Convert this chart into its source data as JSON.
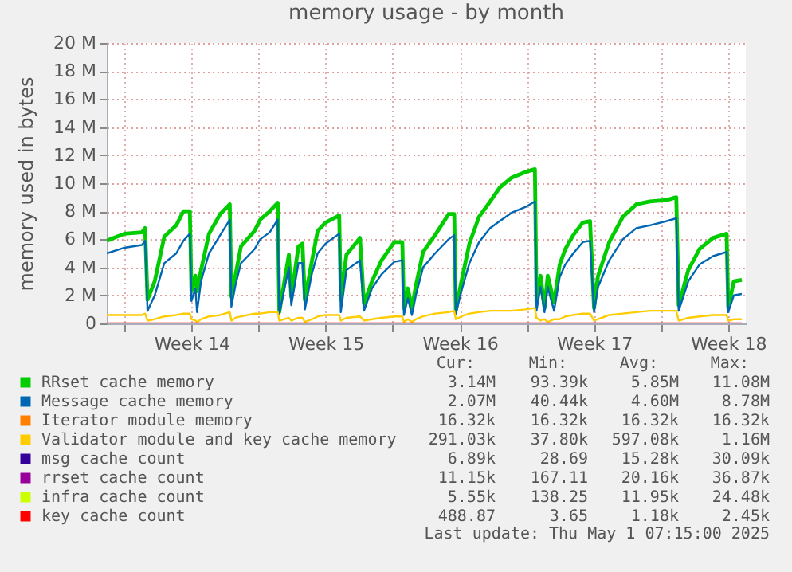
{
  "chart_data": {
    "type": "line",
    "title": "memory usage - by month",
    "ylabel": "memory used in bytes",
    "x": [
      "2025-03-30T02:00",
      "2025-03-31T00:00",
      "2025-03-31T22:00",
      "2025-04-01T02:00",
      "2025-04-01T05:00",
      "2025-04-01T14:00",
      "2025-04-02T02:00",
      "2025-04-02T17:00",
      "2025-04-03T02:00",
      "2025-04-03T10:00",
      "2025-04-03T12:00",
      "2025-04-03T17:00",
      "2025-04-03T19:00",
      "2025-04-04T00:00",
      "2025-04-04T10:00",
      "2025-04-05T00:00",
      "2025-04-05T12:00",
      "2025-04-05T14:00",
      "2025-04-05T19:00",
      "2025-04-06T02:00",
      "2025-04-06T19:00",
      "2025-04-07T02:00",
      "2025-04-07T14:00",
      "2025-04-08T00:00",
      "2025-04-08T02:00",
      "2025-04-08T14:00",
      "2025-04-08T17:00",
      "2025-04-09T02:00",
      "2025-04-09T07:00",
      "2025-04-09T10:00",
      "2025-04-09T19:00",
      "2025-04-10T02:00",
      "2025-04-10T12:00",
      "2025-04-11T05:00",
      "2025-04-11T07:00",
      "2025-04-11T14:00",
      "2025-04-12T07:00",
      "2025-04-12T12:00",
      "2025-04-12T22:00",
      "2025-04-13T10:00",
      "2025-04-14T02:00",
      "2025-04-14T12:00",
      "2025-04-14T14:00",
      "2025-04-14T19:00",
      "2025-04-15T00:00",
      "2025-04-15T05:00",
      "2025-04-15T14:00",
      "2025-04-16T05:00",
      "2025-04-16T22:00",
      "2025-04-17T05:00",
      "2025-04-17T07:00",
      "2025-04-17T14:00",
      "2025-04-18T00:00",
      "2025-04-18T12:00",
      "2025-04-19T02:00",
      "2025-04-19T14:00",
      "2025-04-20T05:00",
      "2025-04-20T22:00",
      "2025-04-21T10:00",
      "2025-04-21T12:00",
      "2025-04-21T17:00",
      "2025-04-21T22:00",
      "2025-04-22T02:00",
      "2025-04-22T10:00",
      "2025-04-22T17:00",
      "2025-04-23T00:00",
      "2025-04-23T10:00",
      "2025-04-23T22:00",
      "2025-04-24T07:00",
      "2025-04-24T12:00",
      "2025-04-24T17:00",
      "2025-04-25T07:00",
      "2025-04-26T00:00",
      "2025-04-26T17:00",
      "2025-04-27T10:00",
      "2025-04-28T07:00",
      "2025-04-28T19:00",
      "2025-04-28T22:00",
      "2025-04-29T10:00",
      "2025-04-30T00:00",
      "2025-04-30T17:00",
      "2025-05-01T10:00",
      "2025-05-01T12:00",
      "2025-05-01T19:00",
      "2025-05-02T05:00"
    ],
    "series": [
      {
        "name": "RRset cache memory",
        "color": "#00cc00",
        "values": [
          5.9,
          6.4,
          6.5,
          6.8,
          1.7,
          3.0,
          6.2,
          7.0,
          8.0,
          8.0,
          2.3,
          3.4,
          2.3,
          3.8,
          6.4,
          7.8,
          8.5,
          1.9,
          3.4,
          5.5,
          6.6,
          7.4,
          8.0,
          8.6,
          0.8,
          4.9,
          1.9,
          5.5,
          5.7,
          1.7,
          4.5,
          6.6,
          7.2,
          7.7,
          1.7,
          4.9,
          6.1,
          1.4,
          3.0,
          4.5,
          5.8,
          5.8,
          1.1,
          2.5,
          1.1,
          2.7,
          5.1,
          6.3,
          7.8,
          7.8,
          0.9,
          3.0,
          5.7,
          7.6,
          8.7,
          9.7,
          10.4,
          10.8,
          11.0,
          1.5,
          3.4,
          1.1,
          3.4,
          1.5,
          4.2,
          5.3,
          6.3,
          7.2,
          7.3,
          1.1,
          3.4,
          5.8,
          7.6,
          8.5,
          8.7,
          8.8,
          9.0,
          1.3,
          3.8,
          5.3,
          6.1,
          6.4,
          1.1,
          3.0,
          3.1
        ]
      },
      {
        "name": "Message cache memory",
        "color": "#0066b3",
        "values": [
          5.0,
          5.4,
          5.6,
          5.9,
          0.9,
          2.0,
          4.3,
          5.0,
          5.9,
          6.4,
          1.6,
          2.5,
          0.8,
          3.0,
          5.0,
          6.3,
          7.4,
          1.2,
          2.7,
          4.3,
          5.3,
          6.0,
          6.5,
          7.4,
          0.7,
          4.0,
          1.3,
          4.3,
          4.3,
          1.0,
          3.6,
          5.0,
          5.7,
          6.4,
          0.8,
          3.8,
          4.5,
          0.9,
          2.5,
          3.5,
          4.4,
          4.5,
          0.6,
          1.8,
          0.6,
          2.0,
          4.0,
          5.0,
          6.0,
          6.3,
          0.7,
          2.3,
          4.3,
          5.8,
          6.8,
          7.3,
          7.9,
          8.3,
          8.7,
          0.9,
          2.6,
          0.8,
          2.6,
          0.9,
          3.3,
          4.2,
          5.0,
          5.8,
          5.9,
          0.8,
          2.6,
          4.5,
          6.0,
          6.8,
          7.0,
          7.3,
          7.5,
          0.9,
          3.0,
          4.2,
          4.8,
          5.1,
          0.8,
          2.0,
          2.1
        ]
      },
      {
        "name": "Iterator module memory",
        "color": "#ff8000",
        "values": [
          null,
          null,
          null,
          null,
          null,
          null,
          null,
          null,
          null,
          null,
          null,
          null,
          null,
          null,
          null,
          null,
          null,
          null,
          null,
          null,
          null,
          null,
          null,
          null,
          null,
          null,
          null,
          null,
          null,
          null,
          null,
          null,
          null,
          null,
          null,
          null,
          null,
          null,
          null,
          null,
          null,
          null,
          null,
          null,
          null,
          null,
          null,
          null,
          null,
          null,
          null,
          null,
          null,
          null,
          null,
          null,
          null,
          null,
          null,
          null,
          null,
          null,
          null,
          null,
          null,
          null,
          null,
          null,
          null,
          null,
          null,
          null,
          null,
          null,
          null,
          null,
          null,
          null,
          null,
          null,
          null,
          null,
          null,
          null,
          null
        ]
      },
      {
        "name": "Validator module and key cache memory",
        "color": "#ffcc00",
        "values": [
          0.6,
          0.6,
          0.6,
          0.7,
          0.2,
          0.3,
          0.5,
          0.6,
          0.7,
          0.7,
          0.3,
          0.2,
          0.1,
          0.3,
          0.5,
          0.6,
          0.8,
          0.2,
          0.4,
          0.5,
          0.7,
          0.7,
          0.8,
          0.8,
          0.2,
          0.4,
          0.2,
          0.4,
          0.4,
          0.1,
          0.3,
          0.5,
          0.6,
          0.6,
          0.2,
          0.4,
          0.5,
          0.2,
          0.3,
          0.4,
          0.5,
          0.5,
          0.1,
          0.3,
          0.1,
          0.3,
          0.5,
          0.7,
          0.8,
          0.9,
          0.3,
          0.5,
          0.7,
          0.8,
          0.9,
          0.9,
          0.9,
          1.0,
          1.1,
          0.4,
          0.2,
          0.3,
          0.1,
          0.3,
          0.3,
          0.5,
          0.6,
          0.7,
          0.7,
          0.2,
          0.3,
          0.6,
          0.7,
          0.8,
          0.9,
          0.9,
          0.9,
          0.2,
          0.4,
          0.5,
          0.6,
          0.6,
          0.2,
          0.3,
          0.3
        ]
      },
      {
        "name": "msg cache count",
        "color": "#330099",
        "values": [
          null,
          null,
          null,
          null,
          null,
          null,
          null,
          null,
          null,
          null,
          null,
          null,
          null,
          null,
          null,
          null,
          null,
          null,
          null,
          null,
          null,
          null,
          null,
          null,
          null,
          null,
          null,
          null,
          null,
          null,
          null,
          null,
          null,
          null,
          null,
          null,
          null,
          null,
          null,
          null,
          null,
          null,
          null,
          null,
          null,
          null,
          null,
          null,
          null,
          null,
          null,
          null,
          null,
          null,
          null,
          null,
          null,
          null,
          null,
          null,
          null,
          null,
          null,
          null,
          null,
          null,
          null,
          null,
          null,
          null,
          null,
          null,
          null,
          null,
          null,
          null,
          null,
          null,
          null,
          null,
          null,
          null,
          null,
          null,
          null
        ]
      },
      {
        "name": "rrset cache count",
        "color": "#990099",
        "values": [
          null,
          null,
          null,
          null,
          null,
          null,
          null,
          null,
          null,
          null,
          null,
          null,
          null,
          null,
          null,
          null,
          null,
          null,
          null,
          null,
          null,
          null,
          null,
          null,
          null,
          null,
          null,
          null,
          null,
          null,
          null,
          null,
          null,
          null,
          null,
          null,
          null,
          null,
          null,
          null,
          null,
          null,
          null,
          null,
          null,
          null,
          null,
          null,
          null,
          null,
          null,
          null,
          null,
          null,
          null,
          null,
          null,
          null,
          null,
          null,
          null,
          null,
          null,
          null,
          null,
          null,
          null,
          null,
          null,
          null,
          null,
          null,
          null,
          null,
          null,
          null,
          null,
          null,
          null,
          null,
          null,
          null,
          null,
          null,
          null
        ]
      },
      {
        "name": "infra cache count",
        "color": "#ccff00",
        "values": [
          null,
          null,
          null,
          null,
          null,
          null,
          null,
          null,
          null,
          null,
          null,
          null,
          null,
          null,
          null,
          null,
          null,
          null,
          null,
          null,
          null,
          null,
          null,
          null,
          null,
          null,
          null,
          null,
          null,
          null,
          null,
          null,
          null,
          null,
          null,
          null,
          null,
          null,
          null,
          null,
          null,
          null,
          null,
          null,
          null,
          null,
          null,
          null,
          null,
          null,
          null,
          null,
          null,
          null,
          null,
          null,
          null,
          null,
          null,
          null,
          null,
          null,
          null,
          null,
          null,
          null,
          null,
          null,
          null,
          null,
          null,
          null,
          null,
          null,
          null,
          null,
          null,
          null,
          null,
          null,
          null,
          null,
          null,
          null,
          null
        ]
      },
      {
        "name": "key cache count",
        "color": "#ff0000",
        "values": [
          0,
          0,
          0,
          0,
          0,
          0,
          0,
          0,
          0,
          0,
          0,
          0,
          0,
          0,
          0,
          0,
          0,
          0,
          0,
          0,
          0,
          0,
          0,
          0,
          0,
          0,
          0,
          0,
          0,
          0,
          0,
          0,
          0,
          0,
          0,
          0,
          0,
          0,
          0,
          0,
          0,
          0,
          0,
          0,
          0,
          0,
          0,
          0,
          0,
          0,
          0,
          0,
          0,
          0,
          0,
          0,
          0,
          0,
          0,
          0,
          0,
          0,
          0,
          0,
          0,
          0,
          0,
          0,
          0,
          0,
          0,
          0,
          0,
          0,
          0,
          0,
          0,
          0,
          0,
          0,
          0,
          0,
          0,
          0,
          0
        ]
      }
    ],
    "xlim": [
      "2025-03-30T02:00",
      "2025-05-02T10:00"
    ],
    "xticks": [
      {
        "value": "2025-03-31T00:00",
        "label": null
      },
      {
        "value": "2025-04-03T12:00",
        "label": "Week 14"
      },
      {
        "value": "2025-04-07T00:00",
        "label": null
      },
      {
        "value": "2025-04-10T12:00",
        "label": "Week 15"
      },
      {
        "value": "2025-04-14T00:00",
        "label": null
      },
      {
        "value": "2025-04-17T12:00",
        "label": "Week 16"
      },
      {
        "value": "2025-04-21T00:00",
        "label": null
      },
      {
        "value": "2025-04-24T12:00",
        "label": "Week 17"
      },
      {
        "value": "2025-04-28T00:00",
        "label": null
      },
      {
        "value": "2025-05-01T12:00",
        "label": "Week 18"
      }
    ],
    "ylim": [
      0,
      20
    ],
    "yticks": [
      0,
      {
        "value": 2,
        "label": "2 M"
      },
      {
        "value": 4,
        "label": "4 M"
      },
      {
        "value": 6,
        "label": "6 M"
      },
      {
        "value": 8,
        "label": "8 M"
      },
      {
        "value": 10,
        "label": "10 M"
      },
      {
        "value": 12,
        "label": "12 M"
      },
      {
        "value": 14,
        "label": "14 M"
      },
      {
        "value": 16,
        "label": "16 M"
      },
      {
        "value": 18,
        "label": "18 M"
      },
      {
        "value": 20,
        "label": "20 M"
      }
    ],
    "grid": true,
    "legend": "bottom",
    "annotations": [
      "Cur:",
      "Min:",
      "Avg:",
      "Max:",
      "3.14M",
      "93.39k",
      "5.85M",
      "11.08M",
      "2.07M",
      "40.44k",
      "4.60M",
      "8.78M",
      "16.32k",
      "16.32k",
      "16.32k",
      "16.32k",
      "291.03k",
      "37.80k",
      "597.08k",
      "1.16M",
      "6.89k",
      "28.69",
      "15.28k",
      "30.09k",
      "11.15k",
      "167.11",
      "20.16k",
      "36.87k",
      "5.55k",
      "138.25",
      "11.95k",
      "24.48k",
      "488.87",
      "3.65",
      "1.18k",
      "2.45k",
      "Last update: Thu May  1 07:15:00 2025"
    ]
  }
}
